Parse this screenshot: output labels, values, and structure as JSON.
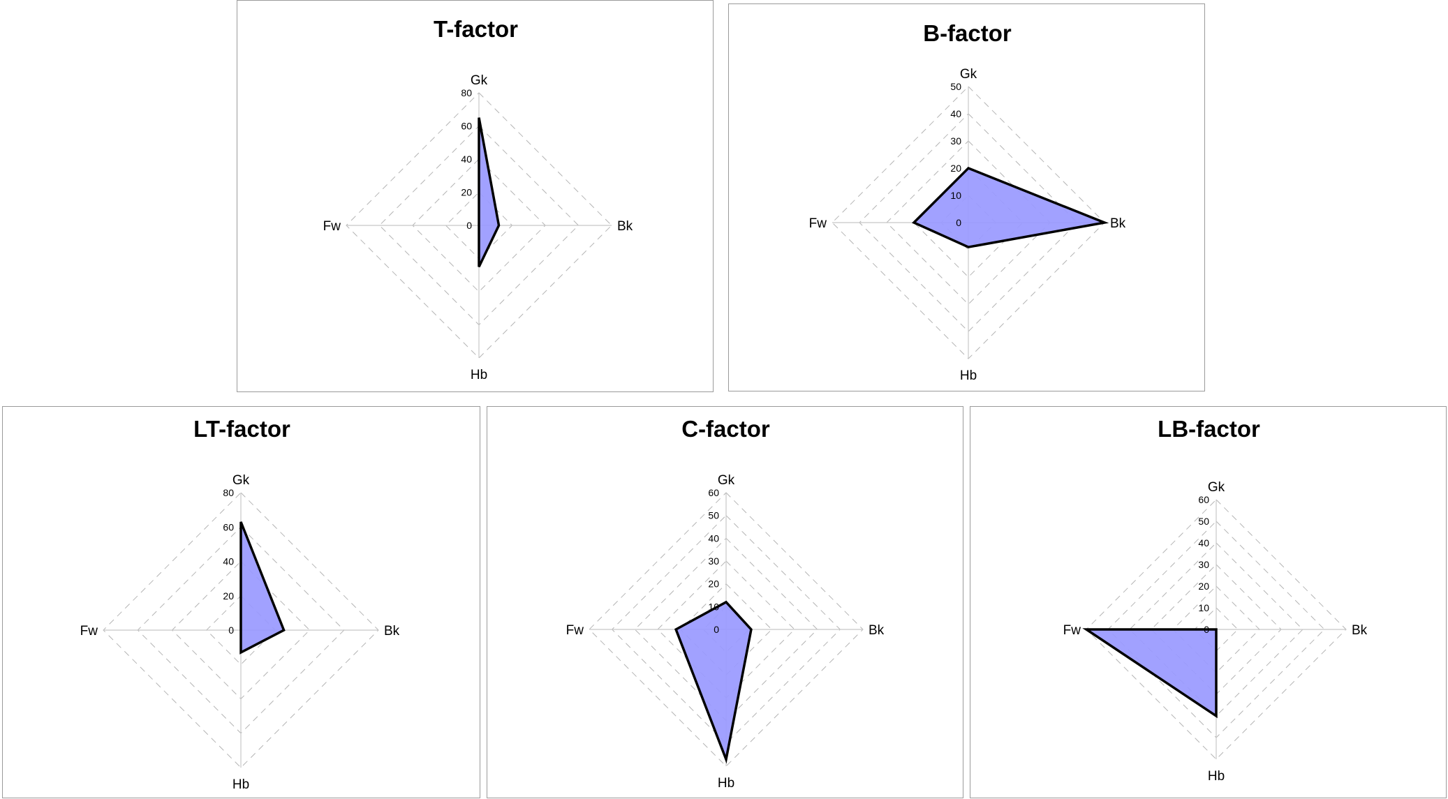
{
  "chart_data": [
    {
      "type": "radar",
      "title": "T-factor",
      "axes": [
        "Gk",
        "Bk",
        "Hb",
        "Fw"
      ],
      "ticks": [
        0,
        20,
        40,
        60,
        80
      ],
      "rmax": 80,
      "values": [
        65,
        12,
        25,
        0
      ],
      "fill_color": "#9999ff",
      "stroke_color": "#000000",
      "grid": "dashed"
    },
    {
      "type": "radar",
      "title": "B-factor",
      "axes": [
        "Gk",
        "Bk",
        "Hb",
        "Fw"
      ],
      "ticks": [
        0,
        10,
        20,
        30,
        40,
        50
      ],
      "rmax": 50,
      "values": [
        20,
        50,
        9,
        20
      ],
      "fill_color": "#9999ff",
      "stroke_color": "#000000",
      "grid": "dashed"
    },
    {
      "type": "radar",
      "title": "LT-factor",
      "axes": [
        "Gk",
        "Bk",
        "Hb",
        "Fw"
      ],
      "ticks": [
        0,
        20,
        40,
        60,
        80
      ],
      "rmax": 80,
      "values": [
        63,
        25,
        13,
        0
      ],
      "fill_color": "#9999ff",
      "stroke_color": "#000000",
      "grid": "dashed"
    },
    {
      "type": "radar",
      "title": "C-factor",
      "axes": [
        "Gk",
        "Bk",
        "Hb",
        "Fw"
      ],
      "ticks": [
        0,
        10,
        20,
        30,
        40,
        50,
        60
      ],
      "rmax": 60,
      "values": [
        12,
        11,
        57,
        22
      ],
      "fill_color": "#9999ff",
      "stroke_color": "#000000",
      "grid": "dashed"
    },
    {
      "type": "radar",
      "title": "LB-factor",
      "axes": [
        "Gk",
        "Bk",
        "Hb",
        "Fw"
      ],
      "ticks": [
        0,
        10,
        20,
        30,
        40,
        50,
        60
      ],
      "rmax": 60,
      "values": [
        0,
        0,
        40,
        60
      ],
      "fill_color": "#9999ff",
      "stroke_color": "#000000",
      "grid": "dashed"
    }
  ]
}
